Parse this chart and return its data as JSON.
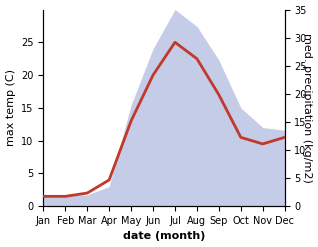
{
  "months": [
    "Jan",
    "Feb",
    "Mar",
    "Apr",
    "May",
    "Jun",
    "Jul",
    "Aug",
    "Sep",
    "Oct",
    "Nov",
    "Dec"
  ],
  "temperature": [
    1.5,
    1.5,
    2.0,
    4.0,
    13.0,
    20.0,
    25.0,
    22.5,
    17.0,
    10.5,
    9.5,
    10.5
  ],
  "precipitation": [
    2.0,
    2.0,
    2.0,
    3.5,
    18.0,
    28.0,
    35.0,
    32.0,
    26.0,
    17.5,
    14.0,
    13.5
  ],
  "temp_color": "#c0392b",
  "precip_fill_color": "#c5cce8",
  "ylabel_left": "max temp (C)",
  "ylabel_right": "med. precipitation (kg/m2)",
  "xlabel": "date (month)",
  "ylim_left": [
    0,
    30
  ],
  "ylim_right": [
    0,
    35
  ],
  "yticks_left": [
    0,
    5,
    10,
    15,
    20,
    25
  ],
  "yticks_right": [
    0,
    5,
    10,
    15,
    20,
    25,
    30,
    35
  ],
  "label_fontsize": 8,
  "tick_fontsize": 7
}
